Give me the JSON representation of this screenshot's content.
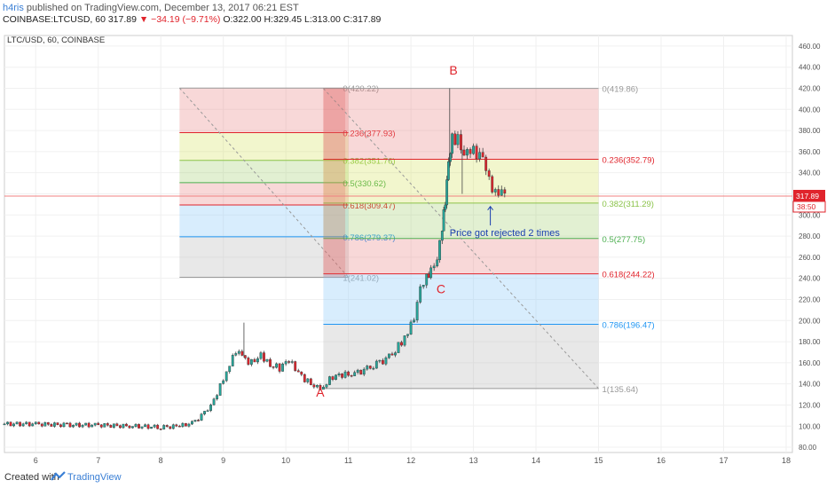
{
  "header": {
    "author": "h4ris",
    "published_text": "published on TradingView.com, December 13, 2017 06:21 EST",
    "symbol_line": "COINBASE:LTCUSD, 60 317.89",
    "change": "▼ −34.19 (−9.71%)",
    "ohlc": "O:322.00 H:329.45 L:313.00 C:317.89"
  },
  "footer": {
    "created_with": "Created with",
    "brand": "TradingView"
  },
  "chart_data": {
    "type": "candlestick",
    "title": "LTC/USD, 60, COINBASE",
    "ylim": [
      75,
      470
    ],
    "y_ticks": [
      80,
      100,
      120,
      140,
      160,
      180,
      200,
      220,
      240,
      260,
      280,
      300,
      320,
      340,
      360,
      380,
      400,
      420,
      440,
      460
    ],
    "y_tick_labels": [
      "80.00",
      "100.00",
      "120.00",
      "140.00",
      "160.00",
      "180.00",
      "200.00",
      "220.00",
      "240.00",
      "260.00",
      "280.00",
      "300.00",
      "320.00",
      "340.00",
      "360.00",
      "380.00",
      "400.00",
      "420.00",
      "440.00",
      "460.00"
    ],
    "xlim": [
      5.5,
      18.1
    ],
    "x_ticks": [
      6,
      7,
      8,
      9,
      10,
      11,
      12,
      13,
      14,
      15,
      16,
      17,
      18
    ],
    "x_tick_labels": [
      "6",
      "7",
      "8",
      "9",
      "10",
      "11",
      "12",
      "13",
      "14",
      "15",
      "16",
      "17",
      "18"
    ],
    "price_label": {
      "value": "317.89",
      "countdown": "38:50",
      "color": "#e0242c"
    },
    "close_points": [
      [
        5.5,
        102
      ],
      [
        6.0,
        102
      ],
      [
        6.5,
        101
      ],
      [
        7.0,
        101
      ],
      [
        7.5,
        100
      ],
      [
        8.0,
        99
      ],
      [
        8.3,
        100
      ],
      [
        8.5,
        103
      ],
      [
        8.7,
        112
      ],
      [
        8.85,
        125
      ],
      [
        9.0,
        145
      ],
      [
        9.1,
        160
      ],
      [
        9.2,
        170
      ],
      [
        9.3,
        165
      ],
      [
        9.45,
        160
      ],
      [
        9.6,
        168
      ],
      [
        9.75,
        158
      ],
      [
        9.9,
        155
      ],
      [
        10.05,
        162
      ],
      [
        10.2,
        150
      ],
      [
        10.35,
        142
      ],
      [
        10.5,
        137
      ],
      [
        10.6,
        138
      ],
      [
        10.75,
        147
      ],
      [
        10.9,
        148
      ],
      [
        11.1,
        150
      ],
      [
        11.3,
        154
      ],
      [
        11.5,
        160
      ],
      [
        11.7,
        168
      ],
      [
        11.85,
        180
      ],
      [
        11.95,
        190
      ],
      [
        12.05,
        200
      ],
      [
        12.15,
        228
      ],
      [
        12.25,
        240
      ],
      [
        12.32,
        250
      ],
      [
        12.42,
        262
      ],
      [
        12.5,
        290
      ],
      [
        12.55,
        310
      ],
      [
        12.6,
        345
      ],
      [
        12.66,
        370
      ],
      [
        12.75,
        375
      ],
      [
        12.85,
        362
      ],
      [
        12.95,
        365
      ],
      [
        13.05,
        355
      ],
      [
        13.15,
        350
      ],
      [
        13.25,
        330
      ],
      [
        13.35,
        322
      ],
      [
        13.45,
        328
      ],
      [
        13.55,
        317.89
      ]
    ],
    "highlight_wicks": [
      [
        12.62,
        420
      ],
      [
        9.33,
        198
      ],
      [
        12.82,
        320
      ]
    ],
    "price_lines": [
      {
        "value": 317.89,
        "color": "#f08080"
      }
    ],
    "fib_left": {
      "x_start": 8.3,
      "x_end": 11.0,
      "levels": [
        {
          "ratio": "0",
          "value": 420.22,
          "label": "0(420.22)",
          "color": "#999999"
        },
        {
          "ratio": "0.236",
          "value": 377.93,
          "label": "0.236(377.93)",
          "color": "#e0242c"
        },
        {
          "ratio": "0.382",
          "value": 351.76,
          "label": "0.382(351.76)",
          "color": "#8bc34a"
        },
        {
          "ratio": "0.5",
          "value": 330.62,
          "label": "0.5(330.62)",
          "color": "#4caf50"
        },
        {
          "ratio": "0.618",
          "value": 309.47,
          "label": "0.618(309.47)",
          "color": "#e0242c"
        },
        {
          "ratio": "0.786",
          "value": 279.37,
          "label": "0.786(279.37)",
          "color": "#2196f3"
        },
        {
          "ratio": "1",
          "value": 241.02,
          "label": "1(241.02)",
          "color": "#999999"
        }
      ]
    },
    "fib_right": {
      "x_start": 10.6,
      "x_end": 15.0,
      "levels": [
        {
          "ratio": "0",
          "value": 419.86,
          "label": "0(419.86)",
          "color": "#999999"
        },
        {
          "ratio": "0.236",
          "value": 352.79,
          "label": "0.236(352.79)",
          "color": "#e0242c"
        },
        {
          "ratio": "0.382",
          "value": 311.29,
          "label": "0.382(311.29)",
          "color": "#8bc34a"
        },
        {
          "ratio": "0.5",
          "value": 277.75,
          "label": "0.5(277.75)",
          "color": "#4caf50"
        },
        {
          "ratio": "0.618",
          "value": 244.22,
          "label": "0.618(244.22)",
          "color": "#e0242c"
        },
        {
          "ratio": "0.786",
          "value": 196.47,
          "label": "0.786(196.47)",
          "color": "#2196f3"
        },
        {
          "ratio": "1",
          "value": 135.64,
          "label": "1(135.64)",
          "color": "#999999"
        }
      ]
    },
    "point_labels": [
      {
        "text": "A",
        "x": 10.55,
        "y": 128
      },
      {
        "text": "B",
        "x": 12.68,
        "y": 433
      },
      {
        "text": "C",
        "x": 12.48,
        "y": 226
      }
    ],
    "annotation": {
      "text": "Price got rejected 2 times",
      "x": 12.62,
      "y": 280,
      "arrow_x": 13.27,
      "arrow_y": 308
    }
  }
}
